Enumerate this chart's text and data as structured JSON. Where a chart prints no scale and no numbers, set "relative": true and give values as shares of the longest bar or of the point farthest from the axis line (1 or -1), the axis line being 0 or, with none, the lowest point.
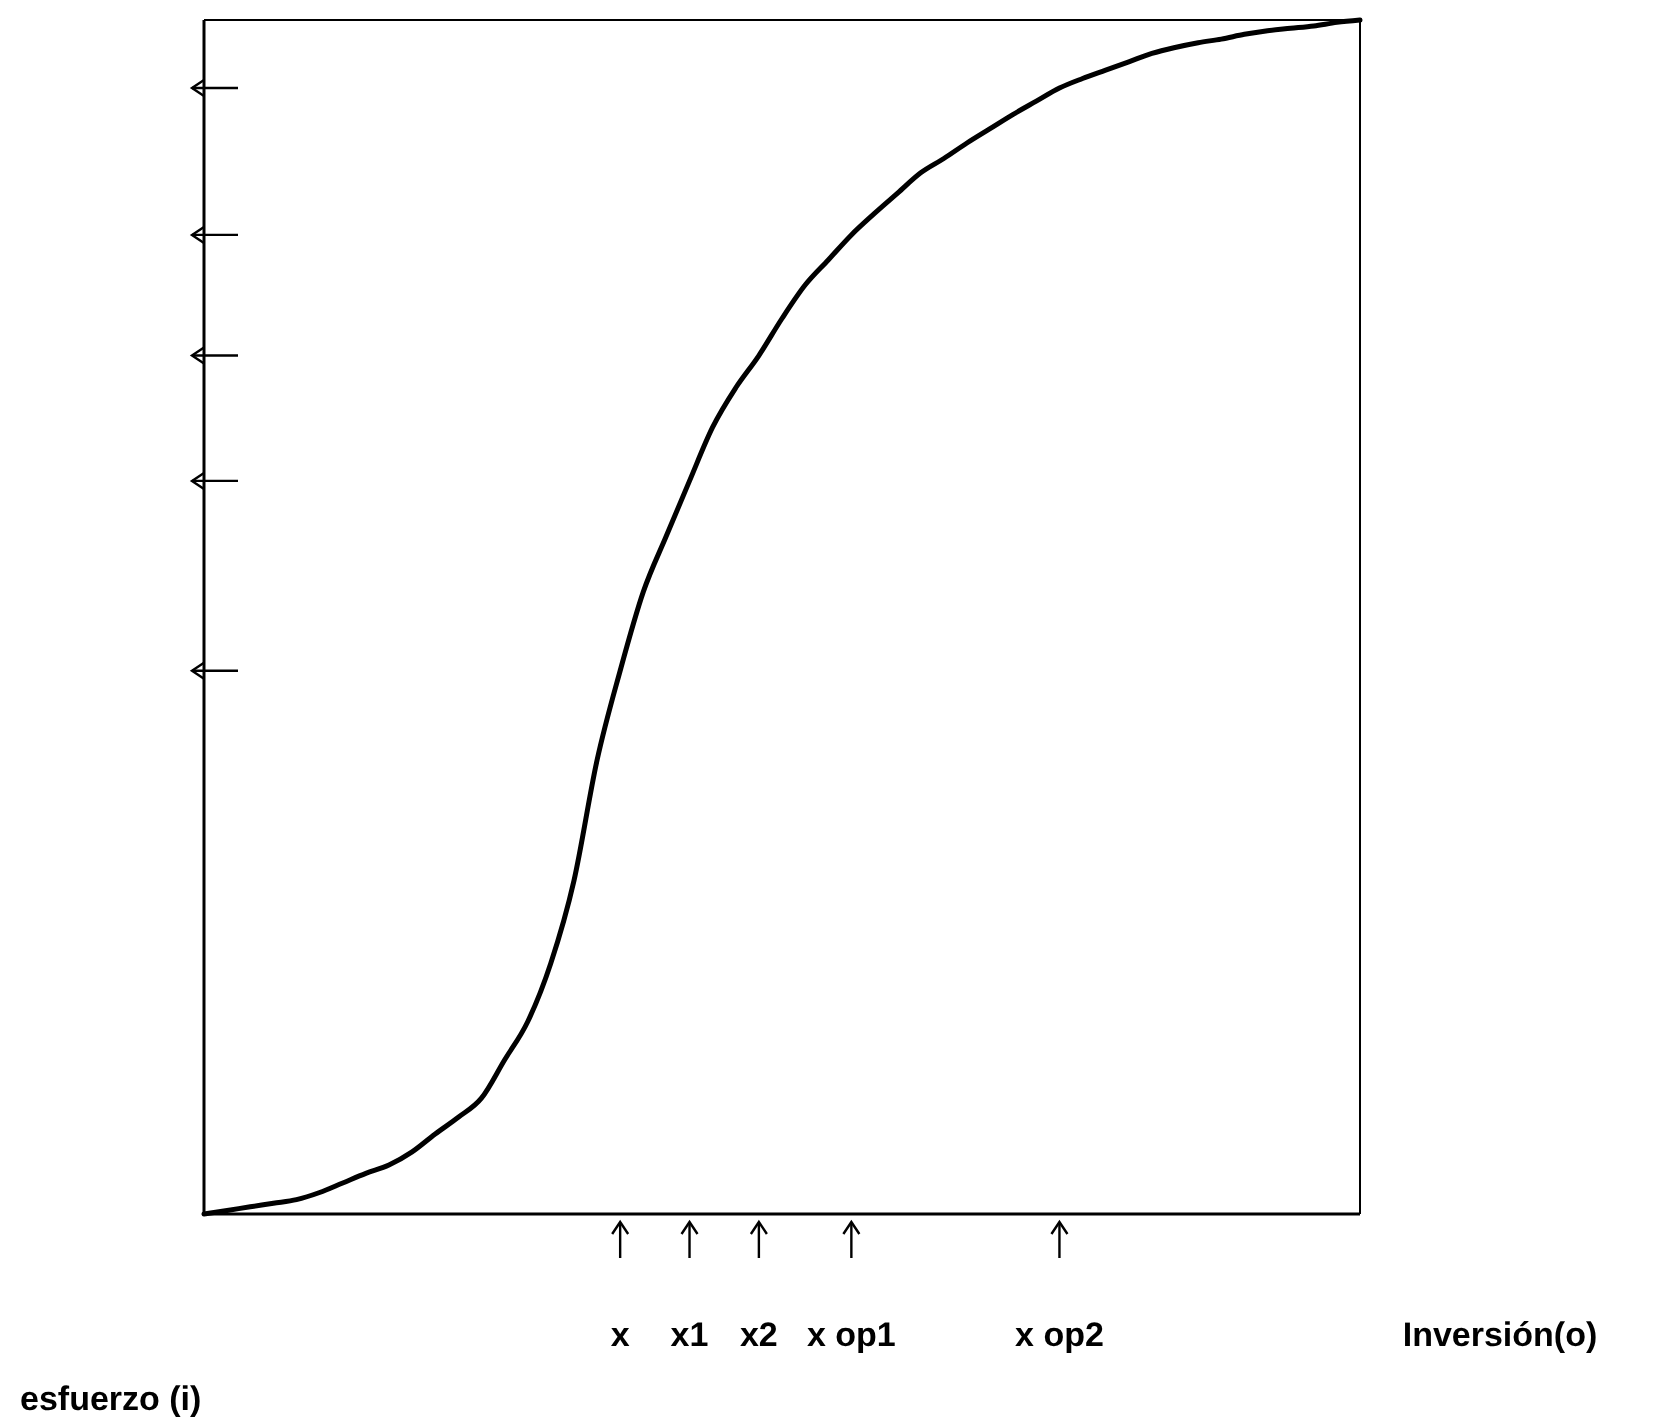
{
  "chart_data": {
    "type": "line",
    "relative": true,
    "xlabel": "Inversión(o)",
    "ylabel": "esfuerzo (i)",
    "categories": [
      null,
      null,
      null,
      null,
      null,
      null,
      null,
      null,
      null,
      null,
      null,
      null,
      null,
      null,
      null,
      null,
      null,
      null,
      "x",
      null,
      null,
      "x1",
      null,
      null,
      "x2",
      null,
      null,
      null,
      "x op1",
      null,
      null,
      null,
      null,
      null,
      null,
      null,
      null,
      "x op2",
      null,
      null,
      null,
      null,
      null,
      null,
      null,
      null,
      null,
      null,
      null,
      null,
      null
    ],
    "series": [
      {
        "color": "#000000",
        "values": [
          0,
          0.003,
          0.006,
          0.009,
          0.012,
          0.018,
          0.026,
          0.034,
          0.041,
          0.052,
          0.067,
          0.081,
          0.097,
          0.129,
          0.161,
          0.21,
          0.279,
          0.38,
          0.455,
          0.521,
          0.568,
          0.614,
          0.659,
          0.692,
          0.719,
          0.75,
          0.778,
          0.799,
          0.82,
          0.838,
          0.855,
          0.872,
          0.884,
          0.897,
          0.909,
          0.921,
          0.932,
          0.943,
          0.951,
          0.958,
          0.965,
          0.972,
          0.977,
          0.981,
          0.984,
          0.988,
          0.991,
          0.993,
          0.995,
          0.998,
          1
        ]
      }
    ],
    "grid": false,
    "marker": "none",
    "line_style": "solid"
  }
}
